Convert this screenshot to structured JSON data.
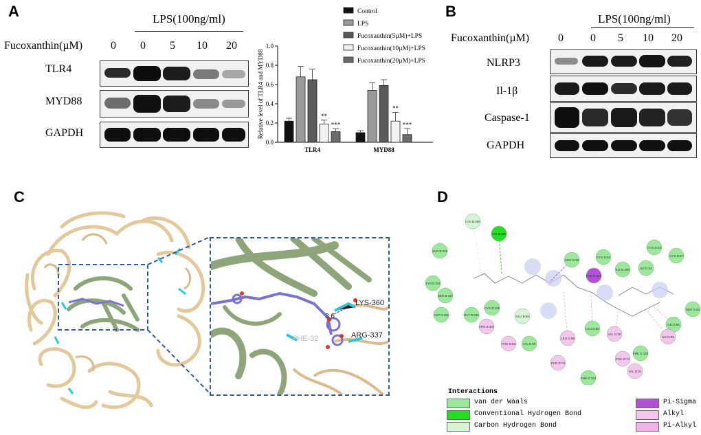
{
  "panelA": {
    "letter": "A",
    "lps_label": "LPS(100ng/ml)",
    "fuco_label": "Fucoxanthin(µM)",
    "lanes": [
      "0",
      "0",
      "5",
      "10",
      "20"
    ],
    "rows": [
      "TLR4",
      "MYD88",
      "GAPDH"
    ]
  },
  "chart_data": {
    "type": "bar",
    "ylabel": "Relative level of TLR4 and MYD88",
    "categories": [
      "TLR4",
      "MYD88"
    ],
    "ylim": [
      0,
      1.0
    ],
    "yticks": [
      "0.0",
      "0.2",
      "0.4",
      "0.6",
      "0.8",
      "1.0"
    ],
    "series": [
      {
        "name": "Control",
        "values": [
          0.22,
          0.1
        ],
        "errors": [
          0.03,
          0.02
        ],
        "color": "#111111"
      },
      {
        "name": "LPS",
        "values": [
          0.68,
          0.54
        ],
        "errors": [
          0.11,
          0.08
        ],
        "color": "#9a9a9a"
      },
      {
        "name": "Fucoxanthin(5µM)+LPS",
        "values": [
          0.65,
          0.59
        ],
        "errors": [
          0.11,
          0.06
        ],
        "color": "#5a5a5a"
      },
      {
        "name": "Fucoxanthin(10µM)+LPS",
        "values": [
          0.19,
          0.22
        ],
        "errors": [
          0.04,
          0.09
        ],
        "color": "#f2f2f2"
      },
      {
        "name": "Fucoxanthin(20µM)+LPS",
        "values": [
          0.11,
          0.08
        ],
        "errors": [
          0.03,
          0.06
        ],
        "color": "#6a6a6a"
      }
    ],
    "annotations": [
      {
        "category": "TLR4",
        "series": 3,
        "text": "**"
      },
      {
        "category": "TLR4",
        "series": 4,
        "text": "***"
      },
      {
        "category": "MYD88",
        "series": 3,
        "text": "**"
      },
      {
        "category": "MYD88",
        "series": 4,
        "text": "***"
      }
    ],
    "legend_position": "top-right"
  },
  "panelB": {
    "letter": "B",
    "lps_label": "LPS(100ng/ml)",
    "fuco_label": "Fucoxanthin(µM)",
    "lanes": [
      "0",
      "0",
      "5",
      "10",
      "20"
    ],
    "rows": [
      "NLRP3",
      "Il-1β",
      "Caspase-1",
      "GAPDH"
    ]
  },
  "panelC": {
    "letter": "C",
    "residue_labels": [
      "LYS-360",
      "ARG-337",
      "PHE-32"
    ],
    "distance_label": "3.6"
  },
  "panelD": {
    "letter": "D",
    "legend_title": "Interactions",
    "legend_items": [
      {
        "label": "van der Waals",
        "color": "#9be89b"
      },
      {
        "label": "Conventional Hydrogen Bond",
        "color": "#22dd22"
      },
      {
        "label": "Carbon Hydrogen Bond",
        "color": "#d6f5d6"
      },
      {
        "label": "Pi-Sigma",
        "color": "#b44fd8"
      },
      {
        "label": "Alkyl",
        "color": "#f4c6ee"
      },
      {
        "label": "Pi-Alkyl",
        "color": "#f0b2e8"
      }
    ],
    "residues": [
      {
        "label": "LYS B:350",
        "type": "carbon-h"
      },
      {
        "label": "LYS B:360",
        "type": "conv-h"
      },
      {
        "label": "GLN B:329",
        "type": "vdw"
      },
      {
        "label": "TYR B:291",
        "type": "vdw"
      },
      {
        "label": "SER B:337",
        "type": "vdw"
      },
      {
        "label": "ASP D:301",
        "type": "vdw"
      },
      {
        "label": "GLY B:335",
        "type": "vdw"
      },
      {
        "label": "CYS B:405",
        "type": "vdw"
      },
      {
        "label": "ARG B:337",
        "type": "alkyl"
      },
      {
        "label": "GLU B:66",
        "type": "carbon-h"
      },
      {
        "label": "PHE D:66",
        "type": "alkyl"
      },
      {
        "label": "VAL B:99",
        "type": "vdw"
      },
      {
        "label": "ARG D:90",
        "type": "vdw"
      },
      {
        "label": "CYS D:64",
        "type": "vdw"
      },
      {
        "label": "ILE D:359",
        "type": "vdw"
      },
      {
        "label": "PHE D:359",
        "type": "pi-sigma"
      },
      {
        "label": "CYS D:33",
        "type": "vdw"
      },
      {
        "label": "ILE D:32",
        "type": "vdw"
      },
      {
        "label": "CYS D:37",
        "type": "vdw"
      },
      {
        "label": "SER D:66",
        "type": "vdw"
      },
      {
        "label": "LEU D:89",
        "type": "alkyl"
      },
      {
        "label": "LEU D:88",
        "type": "vdw"
      },
      {
        "label": "VAL D:35",
        "type": "alkyl"
      },
      {
        "label": "PHE D:76",
        "type": "alkyl"
      },
      {
        "label": "PHE D:74",
        "type": "alkyl"
      },
      {
        "label": "PHE D:129",
        "type": "vdw"
      },
      {
        "label": "PHE D:157",
        "type": "vdw"
      },
      {
        "label": "ILE D:66",
        "type": "vdw"
      },
      {
        "label": "ILE D:32",
        "type": "alkyl"
      },
      {
        "label": "VAL D:31",
        "type": "alkyl"
      }
    ]
  },
  "colors": {
    "protein_tan": "#e3c89a",
    "domain_green": "#8ea57a",
    "ligand_purple": "#7a72d0",
    "stick_cyan": "#28c8d8",
    "box_blue": "#2b5aa8"
  }
}
